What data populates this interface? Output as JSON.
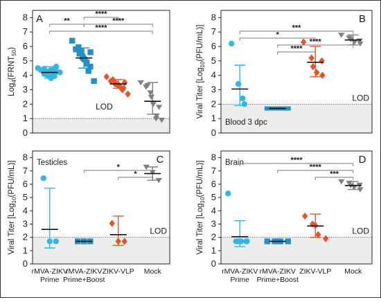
{
  "colors": {
    "prime": "#33b5e5",
    "boost": "#2490c6",
    "vlp": "#e3542a",
    "mock": "#7f7f7f",
    "lod_shade": "#ededed"
  },
  "chart_data": [
    {
      "type": "scatter",
      "panel_label": "A",
      "ylabel": "Log",
      "ylabel_sub": "4",
      "ylabel_rest": "(FRNT",
      "ylabel_sub2": "50",
      "ylabel_end": ")",
      "ylim": [
        0,
        8.5
      ],
      "yticks": [
        "0",
        "1",
        "2",
        "3",
        "4",
        "5",
        "6",
        "7",
        "8"
      ],
      "lod": 1,
      "lod_label": "LOD",
      "inner_text": "",
      "categories": [
        "rMVA-ZIKV Prime",
        "rMVA-ZIKV Prime+Boost",
        "ZIKV-VLP",
        "Mock"
      ],
      "show_xticklabels": false,
      "groups": [
        {
          "color_key": "prime",
          "marker": "circle",
          "mean": 4.2,
          "sd": [
            3.8,
            4.6
          ],
          "points": [
            4.5,
            4.45,
            4.35,
            4.2,
            4.1,
            4.0,
            4.15,
            4.3,
            3.9,
            3.8,
            4.05,
            4.4,
            4.25,
            3.95,
            4.2,
            4.6
          ]
        },
        {
          "color_key": "boost",
          "marker": "square",
          "mean": 5.2,
          "sd": [
            4.5,
            5.9
          ],
          "points": [
            6.4,
            5.95,
            5.8,
            5.7,
            5.5,
            5.3,
            5.2,
            5.1,
            4.9,
            4.8,
            4.6,
            4.3,
            3.6,
            5.6
          ]
        },
        {
          "color_key": "vlp",
          "marker": "diamond",
          "mean": 3.4,
          "sd": [
            3.1,
            3.7
          ],
          "points": [
            3.9,
            3.7,
            3.6,
            3.5,
            3.4,
            3.3,
            3.3,
            3.2,
            3.1,
            3.0,
            2.7,
            3.5
          ]
        },
        {
          "color_key": "mock",
          "marker": "tri-down",
          "mean": 2.2,
          "sd": [
            1.3,
            3.5
          ],
          "points": [
            3.5,
            3.3,
            3.2,
            2.8,
            2.5,
            2.0,
            1.2,
            1.0,
            0.9,
            1.8
          ]
        }
      ],
      "brackets": [
        {
          "from": 0,
          "to": 1,
          "label": "**",
          "level": 0
        },
        {
          "from": 1,
          "to": 2,
          "label": "****",
          "level": 1
        },
        {
          "from": 1,
          "to": 3,
          "label": "****",
          "level": 0
        },
        {
          "from": 0,
          "to": 3,
          "label": "****",
          "level": -1
        }
      ]
    },
    {
      "type": "scatter",
      "panel_label": "B",
      "ylabel": "Viral Titer [Log",
      "ylabel_sub": "10",
      "ylabel_rest": "(PFU/mL)]",
      "ylabel_sub2": "",
      "ylabel_end": "",
      "ylim": [
        0,
        8.5
      ],
      "yticks": [
        "0",
        "1",
        "2",
        "3",
        "4",
        "5",
        "6",
        "7",
        "8"
      ],
      "lod": 2,
      "lod_label": "LOD",
      "inner_text": "Blood 3 dpc",
      "categories": [
        "rMVA-ZIKV Prime",
        "rMVA-ZIKV Prime+Boost",
        "ZIKV-VLP",
        "Mock"
      ],
      "show_xticklabels": false,
      "groups": [
        {
          "color_key": "prime",
          "marker": "circle",
          "mean": 3.05,
          "sd": [
            1.9,
            4.7
          ],
          "points": [
            6.2,
            3.4,
            2.4,
            2.0
          ]
        },
        {
          "color_key": "boost",
          "marker": "bar",
          "mean": 1.7,
          "sd": [
            1.7,
            1.7
          ],
          "points": [
            1.7
          ]
        },
        {
          "color_key": "vlp",
          "marker": "diamond",
          "mean": 4.9,
          "sd": [
            3.9,
            6.0
          ],
          "points": [
            6.3,
            5.2,
            4.6,
            4.2,
            4.0,
            5.0
          ]
        },
        {
          "color_key": "mock",
          "marker": "tri-down",
          "mean": 6.45,
          "sd": [
            6.1,
            6.8
          ],
          "points": [
            6.8,
            6.6,
            6.5,
            6.3,
            6.2,
            6.4
          ]
        }
      ],
      "brackets": [
        {
          "from": 0,
          "to": 3,
          "label": "***",
          "level": 2
        },
        {
          "from": 0,
          "to": 2,
          "label": "*",
          "level": 1
        },
        {
          "from": 1,
          "to": 3,
          "label": "****",
          "level": 0
        },
        {
          "from": 1,
          "to": 2,
          "label": "****",
          "level": -1
        }
      ]
    },
    {
      "type": "scatter",
      "panel_label": "C",
      "ylabel": "Viral Titer [Log",
      "ylabel_sub": "10",
      "ylabel_rest": "(PFU/mL)]",
      "ylabel_sub2": "",
      "ylabel_end": "",
      "ylim": [
        0,
        8.5
      ],
      "yticks": [
        "0",
        "1",
        "2",
        "3",
        "4",
        "5",
        "6",
        "7",
        "8"
      ],
      "lod": 2,
      "lod_label": "LOD",
      "inner_text": "Testicles",
      "categories": [
        "rMVA-ZIKV Prime",
        "rMVA-ZIKV Prime+Boost",
        "ZIKV-VLP",
        "Mock"
      ],
      "show_xticklabels": true,
      "groups": [
        {
          "color_key": "prime",
          "marker": "circle",
          "mean": 2.6,
          "sd": [
            1.2,
            5.7
          ],
          "points": [
            6.45,
            1.7,
            1.7
          ]
        },
        {
          "color_key": "boost",
          "marker": "square",
          "mean": 1.7,
          "sd": [
            1.7,
            1.7
          ],
          "points": [
            1.7,
            1.7,
            1.7
          ]
        },
        {
          "color_key": "vlp",
          "marker": "diamond",
          "mean": 2.2,
          "sd": [
            1.4,
            3.6
          ],
          "points": [
            3.05,
            1.7,
            1.7
          ]
        },
        {
          "color_key": "mock",
          "marker": "tri-down",
          "mean": 6.8,
          "sd": [
            6.3,
            7.3
          ],
          "points": [
            7.3,
            6.9,
            6.3
          ]
        }
      ],
      "brackets": [
        {
          "from": 1,
          "to": 3,
          "label": "*",
          "level": 1
        },
        {
          "from": 2,
          "to": 3,
          "label": "*",
          "level": 0
        }
      ]
    },
    {
      "type": "scatter",
      "panel_label": "D",
      "ylabel": "Viral Titer [Log",
      "ylabel_sub": "10",
      "ylabel_rest": "(PFU/mL)]",
      "ylabel_sub2": "",
      "ylabel_end": "",
      "ylim": [
        0,
        8.5
      ],
      "yticks": [
        "0",
        "1",
        "2",
        "3",
        "4",
        "5",
        "6",
        "7",
        "8"
      ],
      "lod": 2,
      "lod_label": "LOD",
      "inner_text": "Brain",
      "categories": [
        "rMVA-ZIKV Prime",
        "rMVA-ZIKV Prime+Boost",
        "ZIKV-VLP",
        "Mock"
      ],
      "show_xticklabels": true,
      "groups": [
        {
          "color_key": "prime",
          "marker": "circle",
          "mean": 2.05,
          "sd": [
            1.3,
            3.25
          ],
          "points": [
            5.3,
            1.7,
            1.7,
            1.7,
            1.7,
            1.7
          ]
        },
        {
          "color_key": "boost",
          "marker": "square",
          "mean": 1.7,
          "sd": [
            1.7,
            1.7
          ],
          "points": [
            1.7,
            1.7,
            1.7,
            1.7,
            1.7
          ]
        },
        {
          "color_key": "vlp",
          "marker": "diamond",
          "mean": 2.85,
          "sd": [
            2.0,
            3.75
          ],
          "points": [
            3.6,
            3.0,
            2.9,
            2.2,
            1.9
          ]
        },
        {
          "color_key": "mock",
          "marker": "tri-down",
          "mean": 5.9,
          "sd": [
            5.6,
            6.2
          ],
          "points": [
            6.2,
            6.1,
            5.9,
            5.8,
            5.6,
            5.95
          ]
        }
      ],
      "brackets": [
        {
          "from": 0,
          "to": 3,
          "label": "****",
          "level": 2
        },
        {
          "from": 1,
          "to": 3,
          "label": "****",
          "level": 1
        },
        {
          "from": 2,
          "to": 3,
          "label": "***",
          "level": 0
        }
      ]
    }
  ]
}
